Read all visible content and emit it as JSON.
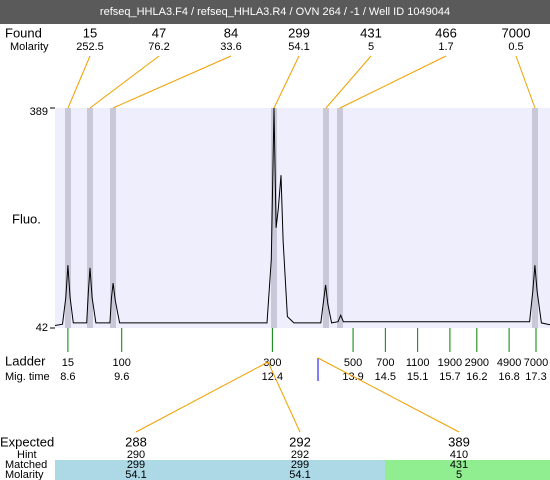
{
  "chart_data": {
    "type": "line",
    "title": "refseq_HHLA3.F4 / refseq_HHLA3.R4 / OVN 264 / -1 / Well ID 1049044",
    "ylabel": "Fluo.",
    "ylim": [
      42,
      389
    ],
    "yticks": [
      42,
      389
    ],
    "xlim": [
      8.36,
      17.56
    ],
    "x": [
      8.36,
      8.5,
      8.56,
      8.6,
      8.64,
      8.7,
      8.95,
      8.98,
      9.01,
      9.05,
      9.12,
      9.38,
      9.41,
      9.44,
      9.48,
      9.56,
      12.3,
      12.38,
      12.43,
      12.47,
      12.51,
      12.56,
      12.6,
      12.68,
      12.8,
      13.3,
      13.36,
      13.39,
      13.43,
      13.5,
      13.62,
      13.67,
      13.72,
      17.18,
      17.24,
      17.28,
      17.32,
      17.4,
      17.56
    ],
    "series": [
      {
        "color": "#000000",
        "values": [
          46,
          48,
          90,
          141,
          90,
          50,
          50,
          100,
          137,
          90,
          50,
          50,
          90,
          113,
          85,
          50,
          50,
          150,
          389,
          200,
          230,
          283,
          180,
          60,
          50,
          50,
          90,
          110,
          80,
          50,
          52,
          62,
          52,
          52,
          100,
          141,
          100,
          50,
          47
        ]
      }
    ],
    "found": {
      "label": "Found",
      "molarity_label": "Molarity",
      "sizes": [
        15,
        47,
        84,
        299,
        431,
        466,
        7000
      ],
      "molarity": [
        252.5,
        76.2,
        33.6,
        54.1,
        5,
        1.7,
        0.5
      ]
    },
    "ladder": {
      "label": "Ladder",
      "time_label": "Mig. time",
      "sizes": [
        15,
        100,
        300,
        500,
        700,
        1100,
        1900,
        2900,
        4900,
        7000
      ],
      "times": [
        8.6,
        9.6,
        12.4,
        13.9,
        14.5,
        15.1,
        15.7,
        16.2,
        16.8,
        17.3
      ]
    },
    "expected": {
      "label": "Expected",
      "hint_label": "Hint",
      "matched_label": "Matched",
      "molarity_label": "Molarity",
      "values": [
        288,
        292,
        389
      ],
      "hint": [
        290,
        292,
        410
      ],
      "matched": [
        299,
        299,
        431
      ],
      "molarity": [
        54.1,
        54.1,
        5
      ]
    }
  }
}
